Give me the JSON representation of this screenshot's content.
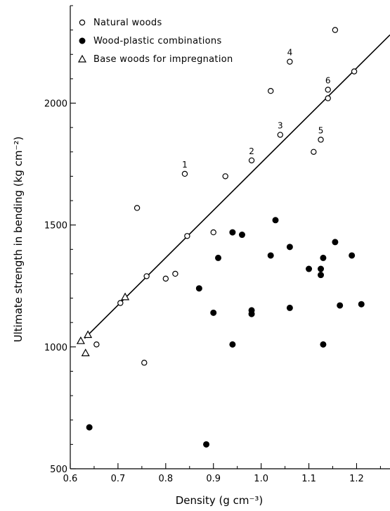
{
  "chart_data": {
    "type": "scatter",
    "xlabel": "Density (g cm⁻³)",
    "ylabel": "Ultimate strength in bending (kg cm⁻²)",
    "xlim": [
      0.6,
      1.27
    ],
    "ylim": [
      500,
      2400
    ],
    "x_ticks": [
      "0.6",
      "0.7",
      "0.8",
      "0.9",
      "1.0",
      "1.1",
      "1.2"
    ],
    "x_tick_values": [
      0.6,
      0.7,
      0.8,
      0.9,
      1.0,
      1.1,
      1.2
    ],
    "y_ticks": [
      "500",
      "1000",
      "1500",
      "2000"
    ],
    "y_tick_values": [
      500,
      1000,
      1500,
      2000
    ],
    "grid": false,
    "legend_position": "top-left",
    "series": [
      {
        "name": "Natural woods",
        "marker": "open-circle",
        "points": [
          {
            "x": 0.655,
            "y": 1010
          },
          {
            "x": 0.705,
            "y": 1180
          },
          {
            "x": 0.74,
            "y": 1570
          },
          {
            "x": 0.755,
            "y": 935
          },
          {
            "x": 0.76,
            "y": 1290
          },
          {
            "x": 0.8,
            "y": 1280
          },
          {
            "x": 0.82,
            "y": 1300
          },
          {
            "x": 0.84,
            "y": 1710
          },
          {
            "x": 0.845,
            "y": 1455
          },
          {
            "x": 0.9,
            "y": 1470
          },
          {
            "x": 0.925,
            "y": 1700
          },
          {
            "x": 0.98,
            "y": 1765
          },
          {
            "x": 1.02,
            "y": 2050
          },
          {
            "x": 1.04,
            "y": 1870
          },
          {
            "x": 1.06,
            "y": 2170
          },
          {
            "x": 1.11,
            "y": 1800
          },
          {
            "x": 1.125,
            "y": 1850
          },
          {
            "x": 1.14,
            "y": 2055
          },
          {
            "x": 1.14,
            "y": 2020
          },
          {
            "x": 1.155,
            "y": 2300
          },
          {
            "x": 1.195,
            "y": 2130
          }
        ]
      },
      {
        "name": "Wood-plastic combinations",
        "marker": "filled-circle",
        "points": [
          {
            "x": 0.64,
            "y": 670
          },
          {
            "x": 0.87,
            "y": 1240
          },
          {
            "x": 0.885,
            "y": 600
          },
          {
            "x": 0.9,
            "y": 1140
          },
          {
            "x": 0.91,
            "y": 1365
          },
          {
            "x": 0.94,
            "y": 1470
          },
          {
            "x": 0.94,
            "y": 1010
          },
          {
            "x": 0.96,
            "y": 1460
          },
          {
            "x": 0.98,
            "y": 1150
          },
          {
            "x": 0.98,
            "y": 1135
          },
          {
            "x": 1.02,
            "y": 1375
          },
          {
            "x": 1.03,
            "y": 1520
          },
          {
            "x": 1.06,
            "y": 1410
          },
          {
            "x": 1.06,
            "y": 1160
          },
          {
            "x": 1.1,
            "y": 1320
          },
          {
            "x": 1.125,
            "y": 1320
          },
          {
            "x": 1.125,
            "y": 1295
          },
          {
            "x": 1.13,
            "y": 1365
          },
          {
            "x": 1.13,
            "y": 1010
          },
          {
            "x": 1.155,
            "y": 1430
          },
          {
            "x": 1.165,
            "y": 1170
          },
          {
            "x": 1.19,
            "y": 1375
          },
          {
            "x": 1.21,
            "y": 1175
          }
        ]
      },
      {
        "name": "Base woods for impregnation",
        "marker": "open-triangle",
        "points": [
          {
            "x": 0.622,
            "y": 1025
          },
          {
            "x": 0.632,
            "y": 975
          },
          {
            "x": 0.637,
            "y": 1050
          },
          {
            "x": 0.715,
            "y": 1205
          }
        ]
      }
    ],
    "point_labels": [
      {
        "text": "1",
        "x": 0.84,
        "y": 1710
      },
      {
        "text": "2",
        "x": 0.98,
        "y": 1765
      },
      {
        "text": "3",
        "x": 1.04,
        "y": 1870
      },
      {
        "text": "4",
        "x": 1.06,
        "y": 2170
      },
      {
        "text": "5",
        "x": 1.125,
        "y": 1850
      },
      {
        "text": "6",
        "x": 1.14,
        "y": 2055
      }
    ],
    "regression_line": [
      {
        "x": 0.63,
        "y": 1035
      },
      {
        "x": 1.27,
        "y": 2280
      }
    ],
    "colors": {
      "ink": "#000000",
      "background": "#ffffff"
    }
  }
}
